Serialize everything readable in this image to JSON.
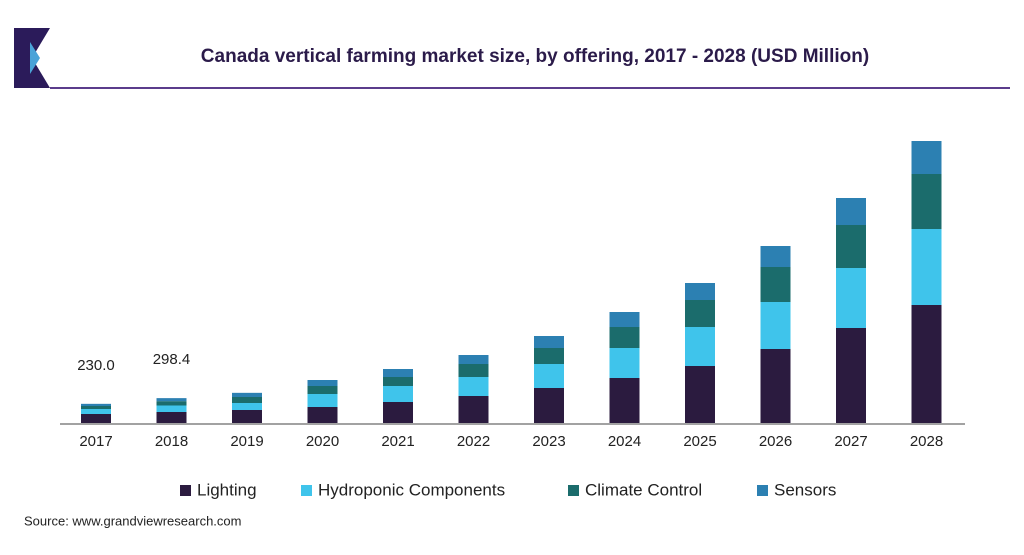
{
  "chart_data": {
    "type": "stacked_bar",
    "title": "Canada vertical farming market size, by offering, 2017 - 2028 (USD Million)",
    "categories": [
      "2017",
      "2018",
      "2019",
      "2020",
      "2021",
      "2022",
      "2023",
      "2024",
      "2025",
      "2026",
      "2027",
      "2028"
    ],
    "series": [
      {
        "name": "Lighting",
        "color": "#2b1b3f",
        "values": [
          108,
          132,
          156,
          192,
          252,
          324,
          420,
          540,
          684,
          888,
          1140,
          1416
        ]
      },
      {
        "name": "Hydroponic Components",
        "color": "#3fc4eb",
        "values": [
          60,
          78,
          84,
          156,
          192,
          228,
          288,
          360,
          468,
          564,
          720,
          912
        ]
      },
      {
        "name": "Climate Control",
        "color": "#1b6c6c",
        "values": [
          36,
          52,
          72,
          96,
          108,
          156,
          192,
          252,
          324,
          420,
          516,
          660
        ]
      },
      {
        "name": "Sensors",
        "color": "#2c80b2",
        "values": [
          26,
          36.4,
          50,
          72,
          96,
          108,
          144,
          180,
          204,
          252,
          324,
          396
        ]
      }
    ],
    "totals": [
      230,
      298.4,
      null,
      null,
      null,
      null,
      null,
      null,
      null,
      null,
      null,
      null
    ],
    "total_labels": [
      "230.0",
      "298.4",
      null,
      null,
      null,
      null,
      null,
      null,
      null,
      null,
      null,
      null
    ],
    "source": "Source: www.grandviewresearch.com"
  }
}
